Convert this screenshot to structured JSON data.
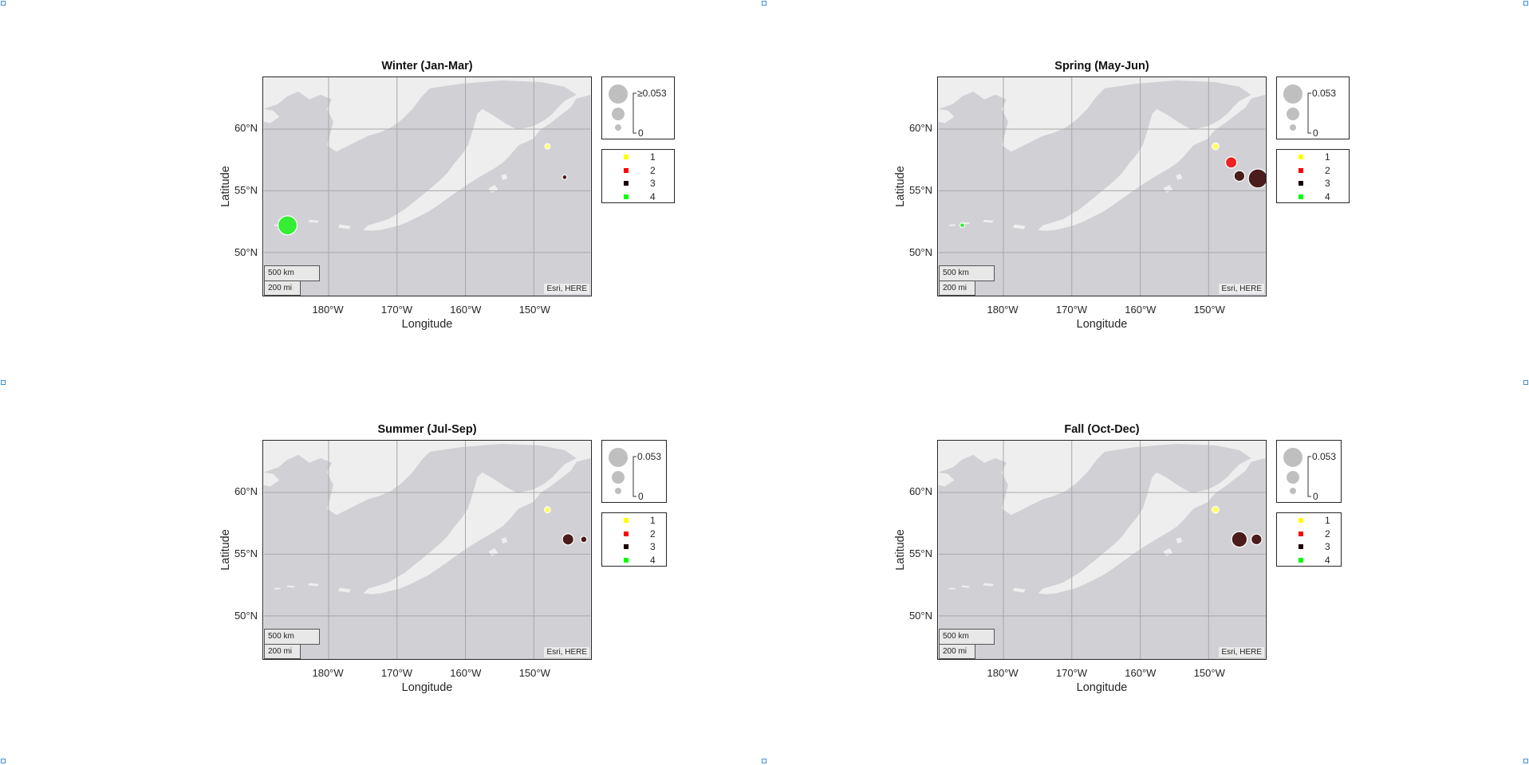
{
  "panels": [
    {
      "title": "Winter (Jan-Mar)",
      "size_legend_max_label": "≥0.053",
      "points": [
        {
          "lon": -186,
          "lat": 52.2,
          "class": 4,
          "value": 0.053
        },
        {
          "lon": -148,
          "lat": 58.6,
          "class": 1,
          "value": 0.001
        },
        {
          "lon": -145.5,
          "lat": 56.1,
          "class": 3,
          "value": 0.0005
        }
      ]
    },
    {
      "title": "Spring (May-Jun)",
      "size_legend_max_label": "0.053",
      "points": [
        {
          "lon": -186,
          "lat": 52.2,
          "class": 4,
          "value": 0.0005
        },
        {
          "lon": -149,
          "lat": 58.6,
          "class": 1,
          "value": 0.003
        },
        {
          "lon": -146.7,
          "lat": 57.3,
          "class": 2,
          "value": 0.014
        },
        {
          "lon": -145.5,
          "lat": 56.2,
          "class": 3,
          "value": 0.012
        },
        {
          "lon": -142.8,
          "lat": 56.0,
          "class": 3,
          "value": 0.053
        }
      ]
    },
    {
      "title": "Summer (Jul-Sep)",
      "size_legend_max_label": "0.053",
      "points": [
        {
          "lon": -148,
          "lat": 58.6,
          "class": 1,
          "value": 0.002
        },
        {
          "lon": -145.0,
          "lat": 56.2,
          "class": 3,
          "value": 0.014
        },
        {
          "lon": -142.7,
          "lat": 56.2,
          "class": 3,
          "value": 0.002
        }
      ]
    },
    {
      "title": "Fall (Oct-Dec)",
      "size_legend_max_label": "0.053",
      "points": [
        {
          "lon": -149,
          "lat": 58.6,
          "class": 1,
          "value": 0.003
        },
        {
          "lon": -145.5,
          "lat": 56.2,
          "class": 3,
          "value": 0.032
        },
        {
          "lon": -143.0,
          "lat": 56.2,
          "class": 3,
          "value": 0.012
        }
      ]
    }
  ],
  "axes": {
    "xlabel": "Longitude",
    "ylabel": "Latitude",
    "lat_ticks": [
      "60°N",
      "55°N",
      "50°N"
    ],
    "lon_ticks": [
      "180°W",
      "170°W",
      "160°W",
      "150°W"
    ],
    "lat_tick_values": [
      60,
      55,
      50
    ],
    "lon_tick_values": [
      -180,
      -170,
      -160,
      -150
    ],
    "lon_range": [
      -189.5,
      -141.7
    ],
    "lat_range": [
      46.5,
      64.2
    ]
  },
  "scalebar": {
    "km_label": "500 km",
    "mi_label": "200 mi"
  },
  "attribution": "Esri, HERE",
  "size_legend": {
    "min_label": "0"
  },
  "class_legend": [
    {
      "label": "1",
      "color": "#ffff00"
    },
    {
      "label": "2",
      "color": "#ff0000"
    },
    {
      "label": "3",
      "color": "#1a0000"
    },
    {
      "label": "4",
      "color": "#00ff00"
    }
  ],
  "marker_colors": {
    "1": "#ffff66",
    "2": "#ee2222",
    "3": "#4a1c1c",
    "4": "#33ee33"
  },
  "colors": {
    "ocean": "#d0d0d5",
    "land": "#eeeeee",
    "legend_bubble": "#bfbfbf",
    "handle": "#3f8fd6"
  }
}
